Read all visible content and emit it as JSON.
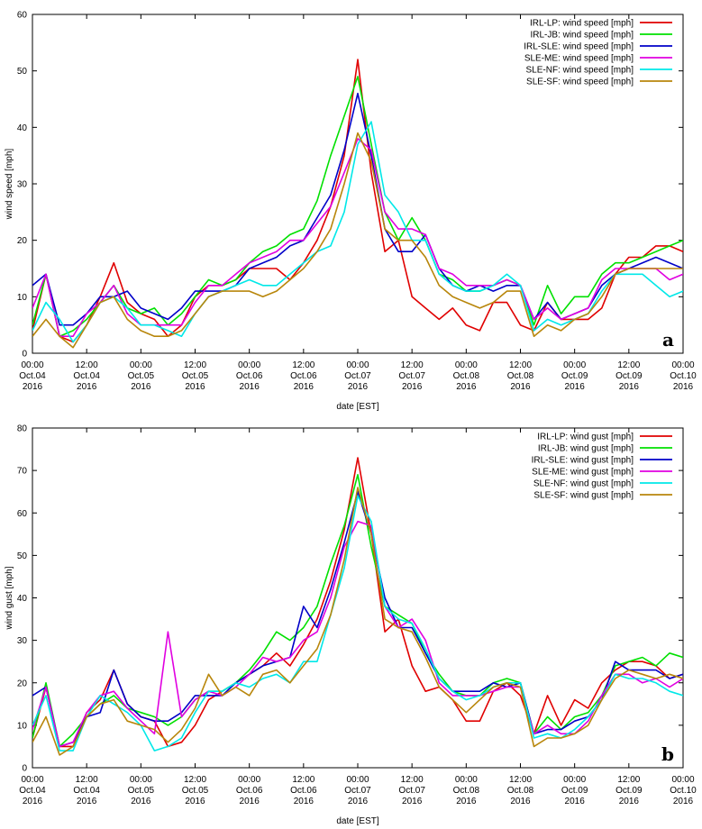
{
  "colors": {
    "IRL-LP": "#e00000",
    "IRL-JB": "#00e000",
    "IRL-SLE": "#0000c8",
    "SLE-ME": "#e000e0",
    "SLE-NF": "#00e8e8",
    "SLE-SF": "#b8860b"
  },
  "chart_data": [
    {
      "type": "line",
      "panel": "a",
      "xlabel": "date [EST]",
      "ylabel": "wind speed [mph]",
      "ylim": [
        0,
        60
      ],
      "yticks": [
        0,
        10,
        20,
        30,
        40,
        50,
        60
      ],
      "xlim_hours": [
        0,
        144
      ],
      "xtick_hours": [
        0,
        12,
        24,
        36,
        48,
        60,
        72,
        84,
        96,
        108,
        120,
        132,
        144
      ],
      "xtick_labels": [
        [
          "00:00",
          "Oct.04",
          "2016"
        ],
        [
          "12:00",
          "Oct.04",
          "2016"
        ],
        [
          "00:00",
          "Oct.05",
          "2016"
        ],
        [
          "12:00",
          "Oct.05",
          "2016"
        ],
        [
          "00:00",
          "Oct.06",
          "2016"
        ],
        [
          "12:00",
          "Oct.06",
          "2016"
        ],
        [
          "00:00",
          "Oct.07",
          "2016"
        ],
        [
          "12:00",
          "Oct.07",
          "2016"
        ],
        [
          "00:00",
          "Oct.08",
          "2016"
        ],
        [
          "12:00",
          "Oct.08",
          "2016"
        ],
        [
          "00:00",
          "Oct.09",
          "2016"
        ],
        [
          "12:00",
          "Oct.09",
          "2016"
        ],
        [
          "00:00",
          "Oct.10",
          "2016"
        ]
      ],
      "legend_position": "top-right",
      "hours": [
        0,
        3,
        6,
        9,
        12,
        15,
        18,
        21,
        24,
        27,
        30,
        33,
        36,
        39,
        42,
        45,
        48,
        51,
        54,
        57,
        60,
        63,
        66,
        69,
        72,
        75,
        78,
        81,
        84,
        87,
        90,
        93,
        96,
        99,
        102,
        105,
        108,
        111,
        114,
        117,
        120,
        123,
        126,
        129,
        132,
        135,
        138,
        141,
        144
      ],
      "series": [
        {
          "name": "IRL-LP",
          "label": "IRL-LP: wind speed [mph]",
          "values": [
            4,
            14,
            3,
            2,
            5,
            10,
            16,
            9,
            7,
            6,
            3,
            5,
            10,
            12,
            12,
            13,
            15,
            15,
            15,
            13,
            16,
            20,
            26,
            35,
            52,
            32,
            18,
            20,
            10,
            8,
            6,
            8,
            5,
            4,
            9,
            9,
            5,
            4,
            9,
            6,
            6,
            6,
            8,
            14,
            17,
            17,
            19,
            19,
            18
          ]
        },
        {
          "name": "IRL-JB",
          "label": "IRL-JB: wind speed [mph]",
          "values": [
            5,
            14,
            3,
            4,
            6,
            9,
            12,
            8,
            7,
            8,
            5,
            7,
            10,
            13,
            12,
            13,
            16,
            18,
            19,
            21,
            22,
            27,
            35,
            42,
            49,
            37,
            25,
            20,
            24,
            20,
            14,
            13,
            11,
            11,
            12,
            13,
            12,
            5,
            12,
            7,
            10,
            10,
            14,
            16,
            16,
            17,
            18,
            19,
            20
          ]
        },
        {
          "name": "IRL-SLE",
          "label": "IRL-SLE: wind speed [mph]",
          "values": [
            12,
            14,
            5,
            5,
            7,
            10,
            10,
            11,
            8,
            7,
            6,
            8,
            11,
            11,
            11,
            12,
            15,
            16,
            17,
            19,
            20,
            24,
            28,
            36,
            46,
            35,
            22,
            18,
            18,
            21,
            15,
            12,
            11,
            12,
            11,
            12,
            12,
            6,
            9,
            6,
            7,
            8,
            12,
            14,
            15,
            16,
            17,
            16,
            15
          ]
        },
        {
          "name": "SLE-ME",
          "label": "SLE-ME: wind speed [mph]",
          "values": [
            8,
            14,
            3,
            3,
            7,
            9,
            12,
            7,
            5,
            5,
            5,
            5,
            9,
            12,
            12,
            14,
            16,
            17,
            18,
            20,
            20,
            23,
            26,
            32,
            38,
            36,
            25,
            22,
            22,
            21,
            15,
            14,
            12,
            12,
            12,
            13,
            12,
            6,
            8,
            6,
            7,
            8,
            13,
            15,
            15,
            15,
            15,
            13,
            14
          ]
        },
        {
          "name": "SLE-NF",
          "label": "SLE-NF: wind speed [mph]",
          "values": [
            4,
            9,
            6,
            2,
            5,
            9,
            10,
            8,
            5,
            5,
            4,
            3,
            7,
            10,
            11,
            12,
            13,
            12,
            12,
            14,
            16,
            18,
            19,
            25,
            37,
            41,
            28,
            25,
            20,
            20,
            14,
            12,
            11,
            11,
            12,
            14,
            12,
            4,
            6,
            5,
            6,
            7,
            11,
            14,
            14,
            14,
            12,
            10,
            11
          ]
        },
        {
          "name": "SLE-SF",
          "label": "SLE-SF: wind speed [mph]",
          "values": [
            3,
            6,
            3,
            1,
            5,
            9,
            10,
            6,
            4,
            3,
            3,
            4,
            7,
            10,
            11,
            11,
            11,
            10,
            11,
            13,
            15,
            18,
            22,
            30,
            39,
            34,
            22,
            20,
            20,
            17,
            12,
            10,
            9,
            8,
            9,
            11,
            11,
            3,
            5,
            4,
            6,
            7,
            10,
            14,
            15,
            15,
            15,
            15,
            15
          ]
        }
      ],
      "panel_label": "a"
    },
    {
      "type": "line",
      "panel": "b",
      "xlabel": "date [EST]",
      "ylabel": "wind gust [mph]",
      "ylim": [
        0,
        80
      ],
      "yticks": [
        0,
        10,
        20,
        30,
        40,
        50,
        60,
        70,
        80
      ],
      "xlim_hours": [
        0,
        144
      ],
      "xtick_hours": [
        0,
        12,
        24,
        36,
        48,
        60,
        72,
        84,
        96,
        108,
        120,
        132,
        144
      ],
      "xtick_labels": [
        [
          "00:00",
          "Oct.04",
          "2016"
        ],
        [
          "12:00",
          "Oct.04",
          "2016"
        ],
        [
          "00:00",
          "Oct.05",
          "2016"
        ],
        [
          "12:00",
          "Oct.05",
          "2016"
        ],
        [
          "00:00",
          "Oct.06",
          "2016"
        ],
        [
          "12:00",
          "Oct.06",
          "2016"
        ],
        [
          "00:00",
          "Oct.07",
          "2016"
        ],
        [
          "12:00",
          "Oct.07",
          "2016"
        ],
        [
          "00:00",
          "Oct.08",
          "2016"
        ],
        [
          "12:00",
          "Oct.08",
          "2016"
        ],
        [
          "00:00",
          "Oct.09",
          "2016"
        ],
        [
          "12:00",
          "Oct.09",
          "2016"
        ],
        [
          "00:00",
          "Oct.10",
          "2016"
        ]
      ],
      "legend_position": "top-right",
      "hours": [
        0,
        3,
        6,
        9,
        12,
        15,
        18,
        21,
        24,
        27,
        30,
        33,
        36,
        39,
        42,
        45,
        48,
        51,
        54,
        57,
        60,
        63,
        66,
        69,
        72,
        75,
        78,
        81,
        84,
        87,
        90,
        93,
        96,
        99,
        102,
        105,
        108,
        111,
        114,
        117,
        120,
        123,
        126,
        129,
        132,
        135,
        138,
        141,
        144
      ],
      "series": [
        {
          "name": "IRL-LP",
          "label": "IRL-LP: wind gust [mph]",
          "values": [
            7,
            19,
            5,
            5,
            13,
            16,
            23,
            15,
            12,
            11,
            5,
            6,
            10,
            16,
            18,
            20,
            22,
            24,
            27,
            24,
            29,
            35,
            44,
            56,
            73,
            55,
            32,
            35,
            24,
            18,
            19,
            16,
            11,
            11,
            18,
            20,
            17,
            8,
            17,
            10,
            16,
            14,
            20,
            23,
            25,
            25,
            24,
            21,
            22
          ]
        },
        {
          "name": "IRL-JB",
          "label": "IRL-JB: wind gust [mph]",
          "values": [
            7,
            20,
            5,
            8,
            12,
            15,
            17,
            14,
            13,
            12,
            10,
            12,
            16,
            18,
            18,
            20,
            23,
            27,
            32,
            30,
            33,
            38,
            48,
            57,
            69,
            52,
            38,
            36,
            34,
            27,
            22,
            18,
            17,
            17,
            20,
            21,
            20,
            8,
            12,
            9,
            12,
            13,
            17,
            24,
            25,
            26,
            24,
            27,
            26
          ]
        },
        {
          "name": "IRL-SLE",
          "label": "IRL-SLE: wind gust [mph]",
          "values": [
            17,
            19,
            5,
            6,
            12,
            13,
            23,
            15,
            12,
            11,
            11,
            13,
            17,
            17,
            17,
            20,
            22,
            24,
            25,
            26,
            38,
            33,
            42,
            53,
            65,
            55,
            40,
            33,
            33,
            27,
            21,
            18,
            18,
            18,
            20,
            19,
            20,
            8,
            9,
            9,
            11,
            12,
            16,
            25,
            23,
            23,
            23,
            21,
            22
          ]
        },
        {
          "name": "SLE-ME",
          "label": "SLE-ME: wind gust [mph]",
          "values": [
            9,
            19,
            5,
            6,
            13,
            17,
            18,
            14,
            11,
            8,
            32,
            12,
            16,
            18,
            17,
            19,
            22,
            26,
            25,
            26,
            30,
            32,
            40,
            52,
            58,
            57,
            38,
            33,
            35,
            30,
            20,
            17,
            17,
            17,
            18,
            19,
            19,
            8,
            10,
            8,
            8,
            11,
            17,
            22,
            22,
            20,
            21,
            19,
            21
          ]
        },
        {
          "name": "SLE-NF",
          "label": "SLE-NF: wind gust [mph]",
          "values": [
            10,
            17,
            4,
            4,
            12,
            17,
            15,
            13,
            10,
            4,
            5,
            7,
            13,
            18,
            18,
            20,
            19,
            21,
            22,
            20,
            25,
            25,
            36,
            47,
            64,
            58,
            38,
            35,
            34,
            28,
            21,
            18,
            16,
            17,
            19,
            20,
            20,
            7,
            8,
            7,
            9,
            12,
            16,
            22,
            21,
            21,
            20,
            18,
            17
          ]
        },
        {
          "name": "SLE-SF",
          "label": "SLE-SF: wind gust [mph]",
          "values": [
            6,
            12,
            3,
            5,
            12,
            15,
            16,
            11,
            10,
            9,
            6,
            9,
            14,
            22,
            17,
            19,
            17,
            22,
            23,
            20,
            24,
            28,
            36,
            49,
            66,
            55,
            35,
            33,
            32,
            26,
            19,
            16,
            13,
            16,
            19,
            20,
            19,
            5,
            7,
            7,
            8,
            10,
            16,
            21,
            23,
            22,
            21,
            22,
            21
          ]
        }
      ],
      "panel_label": "b"
    }
  ]
}
